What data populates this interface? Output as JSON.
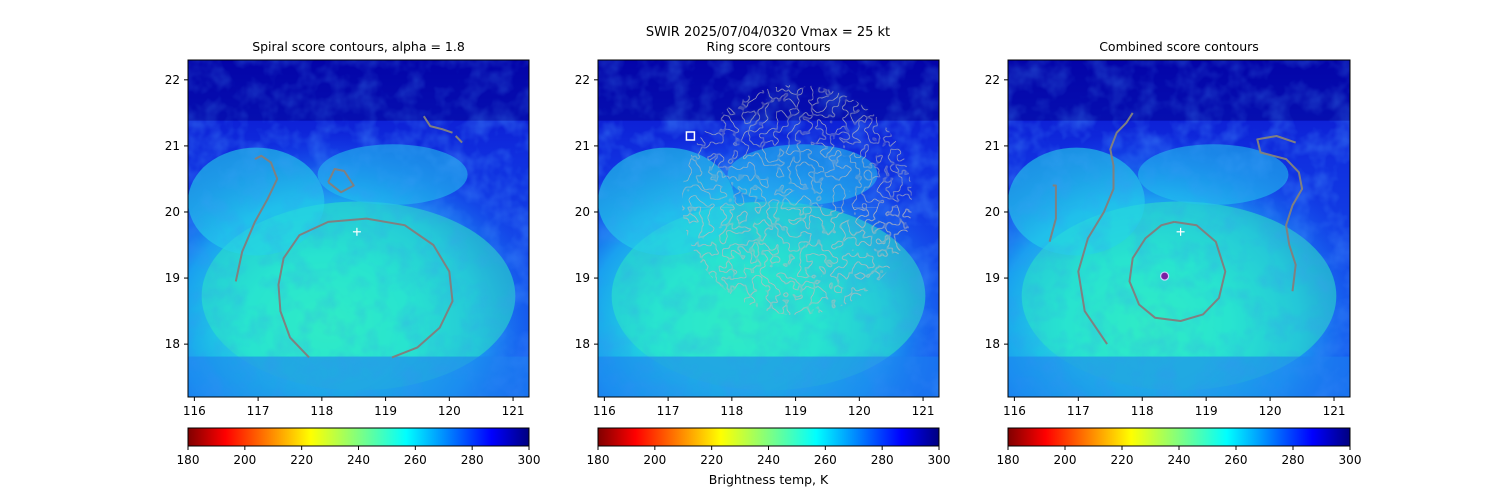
{
  "suptitle": "SWIR  2025/07/04/0320    Vmax = 25 kt",
  "colorbar": {
    "cmap": "jet",
    "vmin": 180,
    "vmax": 300,
    "ticks": [
      "180",
      "200",
      "220",
      "240",
      "260",
      "280",
      "300"
    ],
    "label": "Brightness temp, K"
  },
  "axes_common": {
    "xlim": [
      115.9,
      121.25
    ],
    "ylim": [
      17.2,
      22.3
    ],
    "xticks": [
      "116",
      "117",
      "118",
      "119",
      "120",
      "121"
    ],
    "yticks": [
      "18",
      "19",
      "20",
      "21",
      "22"
    ]
  },
  "chart_data": [
    {
      "type": "heatmap",
      "title": "Spiral score contours, alpha =  1.8",
      "field": "brightness temperature (K)",
      "markers": [
        {
          "kind": "plus",
          "lon": 118.55,
          "lat": 19.7,
          "color": "#ffffff"
        }
      ],
      "contours": [
        {
          "color": "#808080",
          "points": [
            [
              117.8,
              17.8
            ],
            [
              117.5,
              18.1
            ],
            [
              117.35,
              18.5
            ],
            [
              117.32,
              18.9
            ],
            [
              117.4,
              19.3
            ],
            [
              117.65,
              19.65
            ],
            [
              118.1,
              19.85
            ],
            [
              118.7,
              19.9
            ],
            [
              119.3,
              19.8
            ],
            [
              119.75,
              19.5
            ],
            [
              120.0,
              19.1
            ],
            [
              120.05,
              18.65
            ],
            [
              119.85,
              18.25
            ],
            [
              119.5,
              17.95
            ],
            [
              119.1,
              17.8
            ]
          ]
        },
        {
          "color": "#808080",
          "points": [
            [
              116.65,
              18.95
            ],
            [
              116.75,
              19.4
            ],
            [
              116.95,
              19.85
            ],
            [
              117.15,
              20.2
            ],
            [
              117.3,
              20.5
            ],
            [
              117.2,
              20.75
            ],
            [
              117.05,
              20.85
            ],
            [
              116.95,
              20.8
            ]
          ]
        },
        {
          "color": "#808080",
          "points": [
            [
              118.1,
              20.45
            ],
            [
              118.2,
              20.65
            ],
            [
              118.35,
              20.62
            ],
            [
              118.5,
              20.4
            ],
            [
              118.3,
              20.3
            ],
            [
              118.1,
              20.45
            ]
          ]
        },
        {
          "color": "#808080",
          "points": [
            [
              119.6,
              21.45
            ],
            [
              119.7,
              21.3
            ],
            [
              119.9,
              21.25
            ],
            [
              120.05,
              21.2
            ]
          ]
        },
        {
          "color": "#808080",
          "points": [
            [
              120.1,
              21.15
            ],
            [
              120.2,
              21.05
            ]
          ]
        }
      ]
    },
    {
      "type": "heatmap",
      "title": "Ring score contours",
      "field": "brightness temperature (K)",
      "markers": [
        {
          "kind": "square",
          "lon": 117.35,
          "lat": 21.15,
          "color": "#ffffff"
        }
      ],
      "contours": []
    },
    {
      "type": "heatmap",
      "title": "Combined score contours",
      "field": "brightness temperature (K)",
      "markers": [
        {
          "kind": "plus",
          "lon": 118.6,
          "lat": 19.7,
          "color": "#ffffff"
        },
        {
          "kind": "circle",
          "lon": 118.35,
          "lat": 19.03,
          "color": "#7b1fa2"
        }
      ],
      "contours": [
        {
          "color": "#808080",
          "points": [
            [
              118.5,
              19.85
            ],
            [
              118.85,
              19.8
            ],
            [
              119.15,
              19.55
            ],
            [
              119.3,
              19.1
            ],
            [
              119.2,
              18.7
            ],
            [
              118.95,
              18.45
            ],
            [
              118.6,
              18.35
            ],
            [
              118.2,
              18.4
            ],
            [
              117.95,
              18.6
            ],
            [
              117.8,
              18.95
            ],
            [
              117.85,
              19.3
            ],
            [
              118.05,
              19.6
            ],
            [
              118.3,
              19.8
            ],
            [
              118.5,
              19.85
            ]
          ]
        },
        {
          "color": "#808080",
          "points": [
            [
              117.45,
              18.0
            ],
            [
              117.1,
              18.5
            ],
            [
              117.0,
              19.1
            ],
            [
              117.15,
              19.6
            ],
            [
              117.4,
              20.0
            ],
            [
              117.55,
              20.35
            ],
            [
              117.55,
              20.7
            ],
            [
              117.5,
              20.95
            ],
            [
              117.6,
              21.2
            ],
            [
              117.75,
              21.35
            ],
            [
              117.85,
              21.5
            ]
          ]
        },
        {
          "color": "#808080",
          "points": [
            [
              116.55,
              19.55
            ],
            [
              116.65,
              19.9
            ],
            [
              116.65,
              20.4
            ],
            [
              116.6,
              20.4
            ]
          ]
        },
        {
          "color": "#808080",
          "points": [
            [
              120.35,
              18.8
            ],
            [
              120.4,
              19.2
            ],
            [
              120.3,
              19.5
            ],
            [
              120.25,
              19.8
            ],
            [
              120.35,
              20.1
            ],
            [
              120.5,
              20.35
            ],
            [
              120.45,
              20.6
            ],
            [
              120.25,
              20.8
            ],
            [
              120.05,
              20.85
            ],
            [
              119.85,
              20.9
            ],
            [
              119.8,
              21.1
            ],
            [
              120.1,
              21.15
            ],
            [
              120.4,
              21.05
            ]
          ]
        }
      ]
    }
  ]
}
